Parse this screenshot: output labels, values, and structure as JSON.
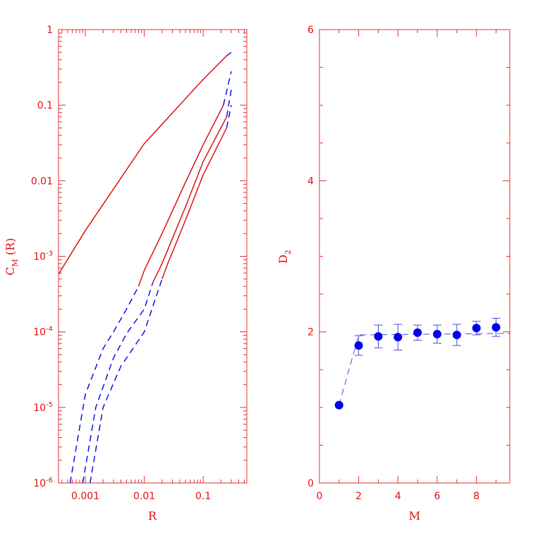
{
  "colors": {
    "frame": "#e03030",
    "text": "#e01010",
    "red_series": "#e01010",
    "blue_series": "#1010e0",
    "points": "#0000ee"
  },
  "chart_data": [
    {
      "type": "line",
      "scale": {
        "x": "log",
        "y": "log"
      },
      "xlabel": "R",
      "ylabel_main": "C",
      "ylabel_sub": "M",
      "ylabel_tail": " (R)",
      "xlim": [
        0.00035,
        0.55
      ],
      "ylim": [
        1e-06,
        1
      ],
      "xticks": [
        {
          "value": 0.001,
          "label": "0.001"
        },
        {
          "value": 0.01,
          "label": "0.01"
        },
        {
          "value": 0.1,
          "label": "0.1"
        }
      ],
      "yticks": [
        {
          "value": 1e-06,
          "base": "10",
          "exp": "-6",
          "label": ""
        },
        {
          "value": 1e-05,
          "base": "10",
          "exp": "-5",
          "label": ""
        },
        {
          "value": 0.0001,
          "base": "10",
          "exp": "-4",
          "label": ""
        },
        {
          "value": 0.001,
          "base": "10",
          "exp": "-3",
          "label": ""
        },
        {
          "value": 0.01,
          "base": "",
          "exp": "",
          "label": "0.01"
        },
        {
          "value": 0.1,
          "base": "",
          "exp": "",
          "label": "0.1"
        },
        {
          "value": 1,
          "base": "",
          "exp": "",
          "label": "1"
        }
      ],
      "series": [
        {
          "style": "solid",
          "color": "red",
          "points": [
            [
              0.00035,
              0.00058
            ],
            [
              0.001,
              0.0022
            ],
            [
              0.01,
              0.031
            ],
            [
              0.1,
              0.22
            ],
            [
              0.25,
              0.45
            ]
          ]
        },
        {
          "style": "dashed",
          "color": "blue",
          "points": [
            [
              0.25,
              0.45
            ],
            [
              0.3,
              0.5
            ]
          ]
        },
        {
          "style": "solid",
          "color": "red",
          "points": [
            [
              0.008,
              0.0004
            ],
            [
              0.01,
              0.00065
            ],
            [
              0.02,
              0.002
            ],
            [
              0.05,
              0.0095
            ],
            [
              0.1,
              0.03
            ],
            [
              0.22,
              0.1
            ]
          ]
        },
        {
          "style": "dashed",
          "color": "blue",
          "points": [
            [
              0.00055,
              1e-06
            ],
            [
              0.001,
              1.5e-05
            ],
            [
              0.002,
              6e-05
            ],
            [
              0.003,
              0.0001
            ],
            [
              0.005,
              0.0002
            ],
            [
              0.008,
              0.0004
            ]
          ]
        },
        {
          "style": "dashed",
          "color": "blue",
          "points": [
            [
              0.22,
              0.1
            ],
            [
              0.3,
              0.28
            ]
          ]
        },
        {
          "style": "solid",
          "color": "red",
          "points": [
            [
              0.014,
              0.00045
            ],
            [
              0.02,
              0.0008
            ],
            [
              0.05,
              0.0045
            ],
            [
              0.1,
              0.018
            ],
            [
              0.25,
              0.07
            ]
          ]
        },
        {
          "style": "dashed",
          "color": "blue",
          "points": [
            [
              0.0009,
              1e-06
            ],
            [
              0.0015,
              1e-05
            ],
            [
              0.003,
              4.5e-05
            ],
            [
              0.005,
              9.5e-05
            ],
            [
              0.01,
              0.0002
            ],
            [
              0.014,
              0.00045
            ]
          ]
        },
        {
          "style": "dashed",
          "color": "blue",
          "points": [
            [
              0.25,
              0.07
            ],
            [
              0.3,
              0.16
            ]
          ]
        },
        {
          "style": "solid",
          "color": "red",
          "points": [
            [
              0.02,
              0.0005
            ],
            [
              0.025,
              0.0008
            ],
            [
              0.05,
              0.003
            ],
            [
              0.1,
              0.012
            ],
            [
              0.25,
              0.05
            ]
          ]
        },
        {
          "style": "dashed",
          "color": "blue",
          "points": [
            [
              0.0012,
              1e-06
            ],
            [
              0.002,
              1e-05
            ],
            [
              0.004,
              3.5e-05
            ],
            [
              0.01,
              0.0001
            ],
            [
              0.02,
              0.0005
            ]
          ]
        },
        {
          "style": "dashed",
          "color": "blue",
          "points": [
            [
              0.25,
              0.05
            ],
            [
              0.3,
              0.1
            ]
          ]
        }
      ]
    },
    {
      "type": "scatter",
      "xlabel": "M",
      "ylabel_main": "D",
      "ylabel_sub": "2",
      "xlim": [
        0,
        9.7
      ],
      "ylim": [
        0,
        6
      ],
      "xticks": [
        {
          "value": 0,
          "label": "0"
        },
        {
          "value": 2,
          "label": "2"
        },
        {
          "value": 4,
          "label": "4"
        },
        {
          "value": 6,
          "label": "6"
        },
        {
          "value": 8,
          "label": "8"
        }
      ],
      "yticks": [
        {
          "value": 0,
          "label": "0"
        },
        {
          "value": 2,
          "label": "2"
        },
        {
          "value": 4,
          "label": "4"
        },
        {
          "value": 6,
          "label": "6"
        }
      ],
      "x": [
        1,
        2,
        3,
        4,
        5,
        6,
        7,
        8,
        9
      ],
      "y": [
        1.03,
        1.82,
        1.94,
        1.93,
        1.99,
        1.97,
        1.96,
        2.05,
        2.06
      ],
      "yerr": [
        0,
        0.13,
        0.15,
        0.17,
        0.1,
        0.12,
        0.14,
        0.09,
        0.12
      ],
      "fit_line": [
        [
          1,
          1.03
        ],
        [
          2,
          1.96
        ],
        [
          9.7,
          1.98
        ]
      ]
    }
  ]
}
